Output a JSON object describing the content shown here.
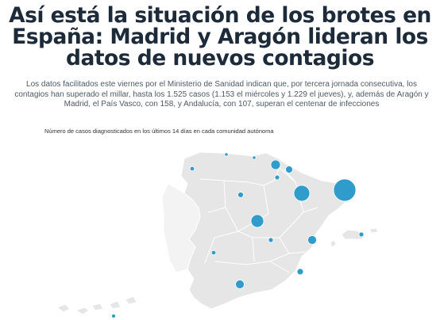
{
  "article": {
    "headline": "Así está la situación de los brotes en España: Madrid y Aragón lideran los datos de nuevos contagios",
    "intro": "Los datos facilitados este viernes por el Ministerio de Sanidad indican que, por tercera jornada consecutiva, los contagios han superado el millar, hasta los 1.525 casos (1.153 el miércoles y 1.229 el jueves), y, además de Aragón y Madrid, el País Vasco, con 158, y Andalucía, con 107, superan el centenar de infecciones"
  },
  "map": {
    "caption": "Número de casos diagnosticados en los últimos 14 días en cada comunidad autónoma",
    "bubble_color": "#2f9ccc",
    "land_color": "#e6e6e6",
    "bubble_markers": [
      {
        "name": "cataluna-bubble",
        "relative_size": "largest"
      },
      {
        "name": "aragon-bubble",
        "relative_size": "large"
      },
      {
        "name": "madrid-bubble",
        "relative_size": "medium-large"
      },
      {
        "name": "pais-vasco-bubble",
        "relative_size": "medium"
      },
      {
        "name": "andalucia-bubble",
        "relative_size": "medium"
      },
      {
        "name": "valencia-bubble",
        "relative_size": "medium"
      },
      {
        "name": "navarra-bubble",
        "relative_size": "small"
      },
      {
        "name": "la-rioja-bubble",
        "relative_size": "small"
      },
      {
        "name": "castilla-leon-bubble",
        "relative_size": "small"
      },
      {
        "name": "castilla-la-mancha-bubble",
        "relative_size": "small"
      },
      {
        "name": "extremadura-bubble",
        "relative_size": "small"
      },
      {
        "name": "murcia-bubble",
        "relative_size": "small"
      },
      {
        "name": "baleares-bubble",
        "relative_size": "small"
      },
      {
        "name": "galicia-bubble",
        "relative_size": "tiny"
      },
      {
        "name": "asturias-bubble",
        "relative_size": "tiny"
      },
      {
        "name": "cantabria-bubble",
        "relative_size": "tiny"
      },
      {
        "name": "canarias-bubble",
        "relative_size": "tiny"
      }
    ]
  }
}
